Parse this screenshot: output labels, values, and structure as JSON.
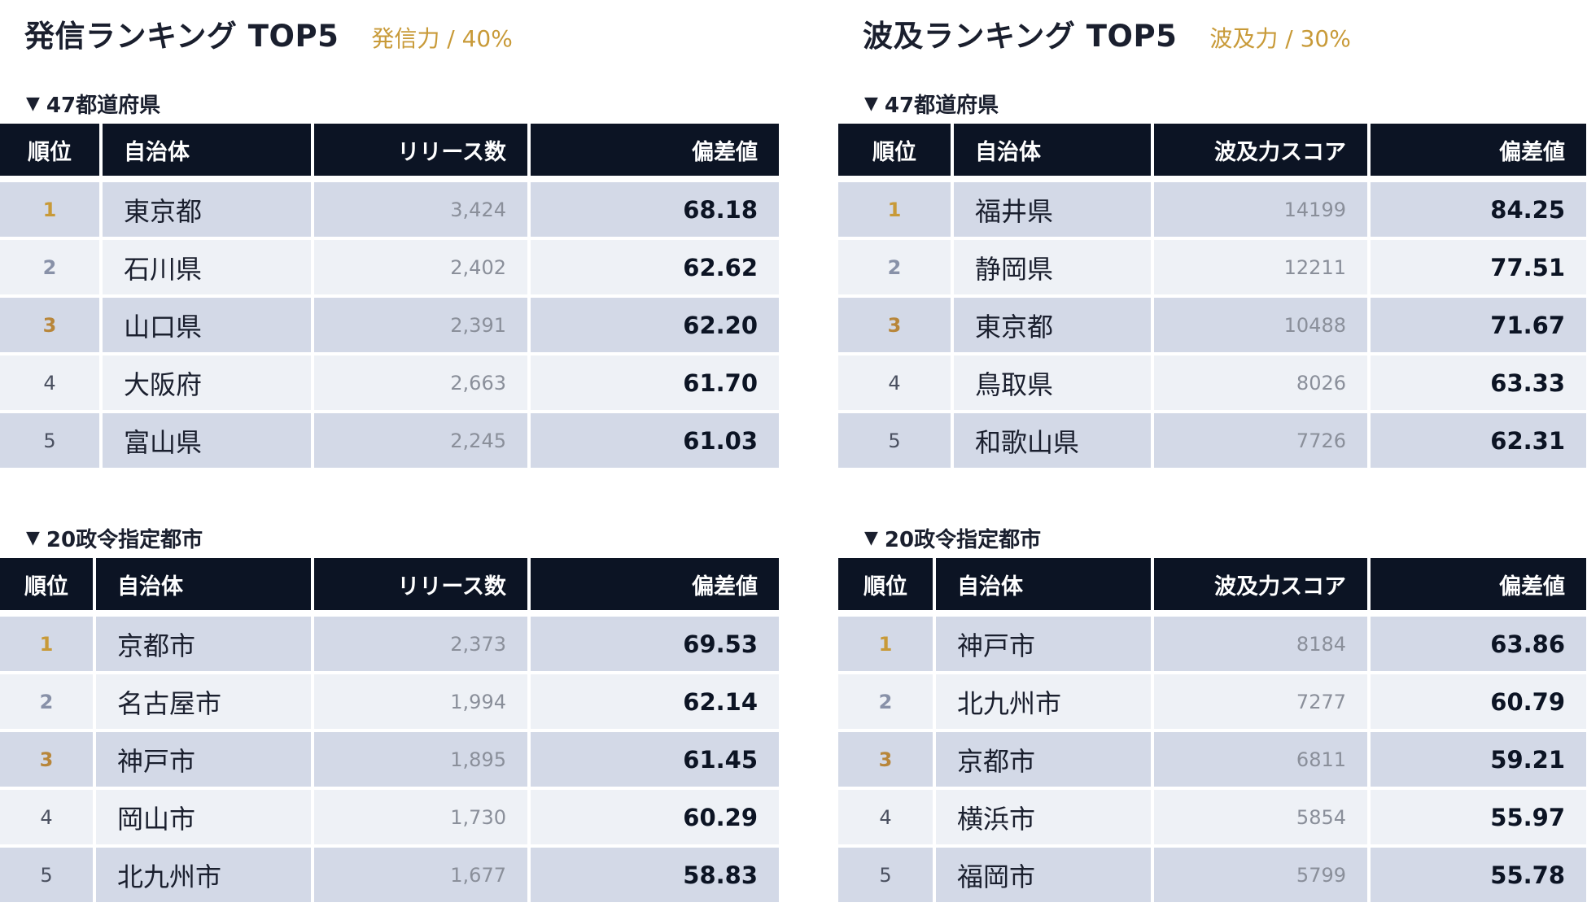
{
  "left": {
    "title": "発信ランキング TOP5",
    "subtitle": "発信力 / 40%",
    "sections": [
      {
        "label": "47都道府県",
        "headers": [
          "順位",
          "自治体",
          "リリース数",
          "偏差値"
        ],
        "rows": [
          {
            "rank": "1",
            "name": "東京都",
            "value": "3,424",
            "dev": "68.18"
          },
          {
            "rank": "2",
            "name": "石川県",
            "value": "2,402",
            "dev": "62.62"
          },
          {
            "rank": "3",
            "name": "山口県",
            "value": "2,391",
            "dev": "62.20"
          },
          {
            "rank": "4",
            "name": "大阪府",
            "value": "2,663",
            "dev": "61.70"
          },
          {
            "rank": "5",
            "name": "富山県",
            "value": "2,245",
            "dev": "61.03"
          }
        ]
      },
      {
        "label": "20政令指定都市",
        "headers": [
          "順位",
          "自治体",
          "リリース数",
          "偏差値"
        ],
        "rows": [
          {
            "rank": "1",
            "name": "京都市",
            "value": "2,373",
            "dev": "69.53"
          },
          {
            "rank": "2",
            "name": "名古屋市",
            "value": "1,994",
            "dev": "62.14"
          },
          {
            "rank": "3",
            "name": "神戸市",
            "value": "1,895",
            "dev": "61.45"
          },
          {
            "rank": "4",
            "name": "岡山市",
            "value": "1,730",
            "dev": "60.29"
          },
          {
            "rank": "5",
            "name": "北九州市",
            "value": "1,677",
            "dev": "58.83"
          }
        ]
      }
    ]
  },
  "right": {
    "title": "波及ランキング TOP5",
    "subtitle": "波及力 / 30%",
    "sections": [
      {
        "label": "47都道府県",
        "headers": [
          "順位",
          "自治体",
          "波及力スコア",
          "偏差値"
        ],
        "rows": [
          {
            "rank": "1",
            "name": "福井県",
            "value": "14199",
            "dev": "84.25"
          },
          {
            "rank": "2",
            "name": "静岡県",
            "value": "12211",
            "dev": "77.51"
          },
          {
            "rank": "3",
            "name": "東京都",
            "value": "10488",
            "dev": "71.67"
          },
          {
            "rank": "4",
            "name": "鳥取県",
            "value": "8026",
            "dev": "63.33"
          },
          {
            "rank": "5",
            "name": "和歌山県",
            "value": "7726",
            "dev": "62.31"
          }
        ]
      },
      {
        "label": "20政令指定都市",
        "headers": [
          "順位",
          "自治体",
          "波及力スコア",
          "偏差値"
        ],
        "rows": [
          {
            "rank": "1",
            "name": "神戸市",
            "value": "8184",
            "dev": "63.86"
          },
          {
            "rank": "2",
            "name": "北九州市",
            "value": "7277",
            "dev": "60.79"
          },
          {
            "rank": "3",
            "name": "京都市",
            "value": "6811",
            "dev": "59.21"
          },
          {
            "rank": "4",
            "name": "横浜市",
            "value": "5854",
            "dev": "55.97"
          },
          {
            "rank": "5",
            "name": "福岡市",
            "value": "5799",
            "dev": "55.78"
          }
        ]
      }
    ]
  }
}
